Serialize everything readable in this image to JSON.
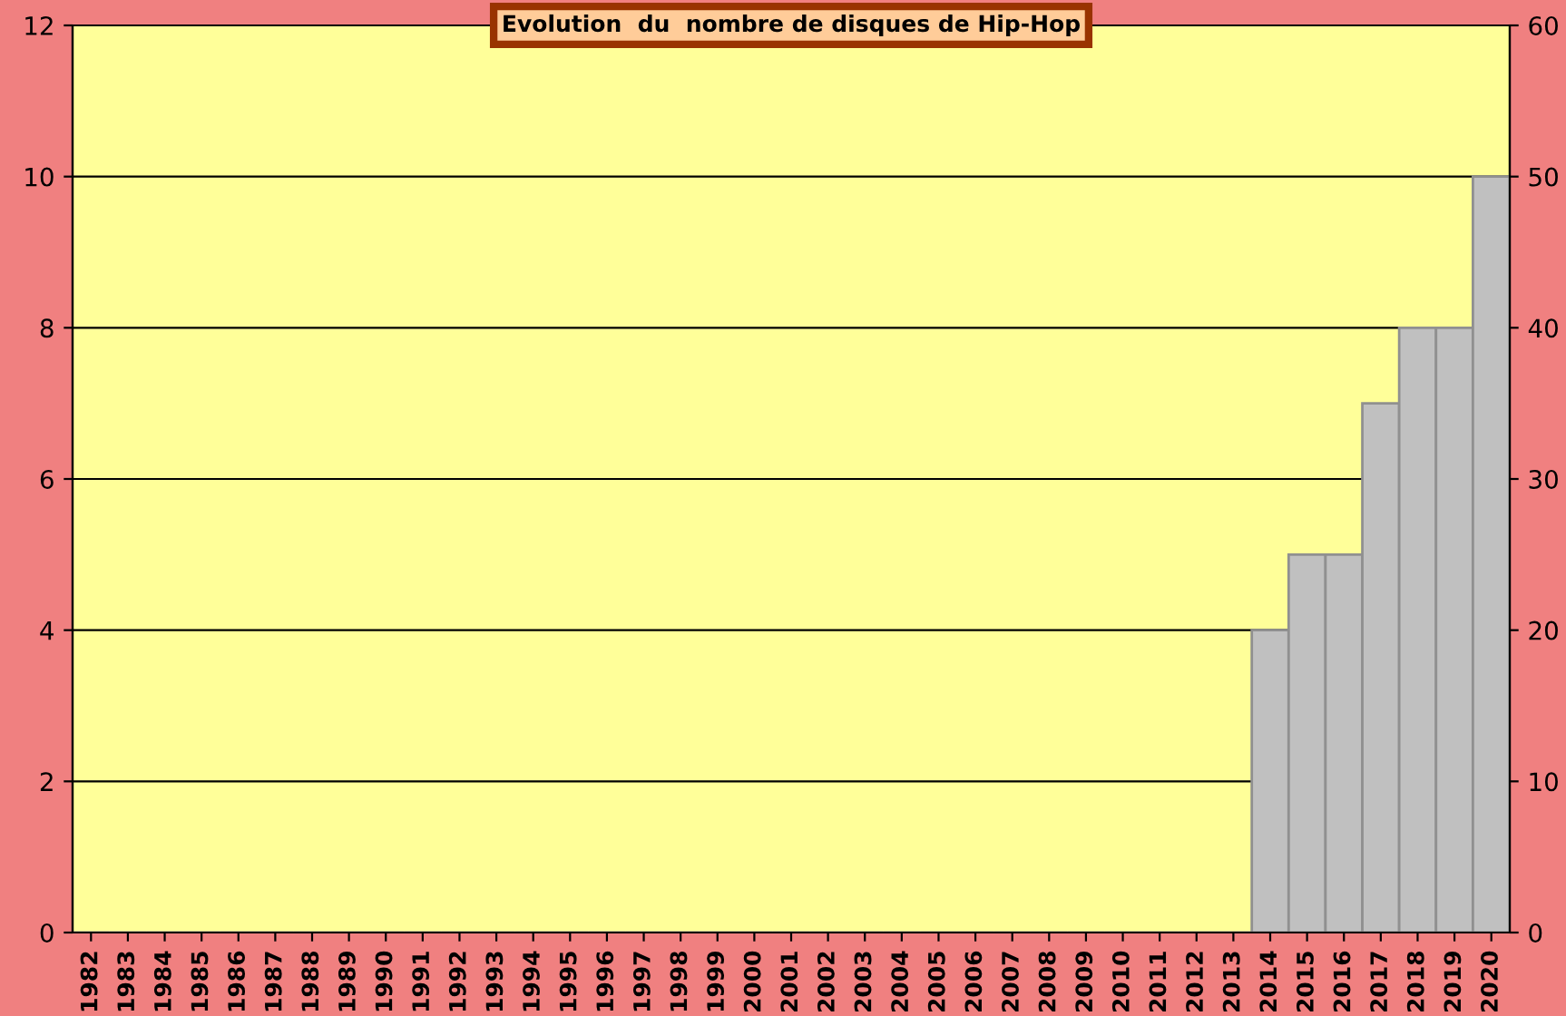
{
  "chart_data": {
    "type": "bar",
    "title": "Evolution  du  nombre de disques de Hip-Hop",
    "categories": [
      "1982",
      "1983",
      "1984",
      "1985",
      "1986",
      "1987",
      "1988",
      "1989",
      "1990",
      "1991",
      "1992",
      "1993",
      "1994",
      "1995",
      "1996",
      "1997",
      "1998",
      "1999",
      "2000",
      "2001",
      "2002",
      "2003",
      "2004",
      "2005",
      "2006",
      "2007",
      "2008",
      "2009",
      "2010",
      "2011",
      "2012",
      "2013",
      "2014",
      "2015",
      "2016",
      "2017",
      "2018",
      "2019",
      "2020"
    ],
    "values": [
      0,
      0,
      0,
      0,
      0,
      0,
      0,
      0,
      0,
      0,
      0,
      0,
      0,
      0,
      0,
      0,
      0,
      0,
      0,
      0,
      0,
      0,
      0,
      0,
      0,
      0,
      0,
      0,
      0,
      0,
      0,
      0,
      4,
      5,
      5,
      7,
      8,
      8,
      10
    ],
    "color": "#c0c0c0",
    "ylim": [
      0,
      12
    ],
    "yticks": [
      0,
      2,
      4,
      6,
      8,
      10,
      12
    ],
    "y2lim": [
      0,
      60
    ],
    "y2ticks": [
      0,
      10,
      20,
      30,
      40,
      50,
      60
    ],
    "grid": "y",
    "legend": false
  }
}
